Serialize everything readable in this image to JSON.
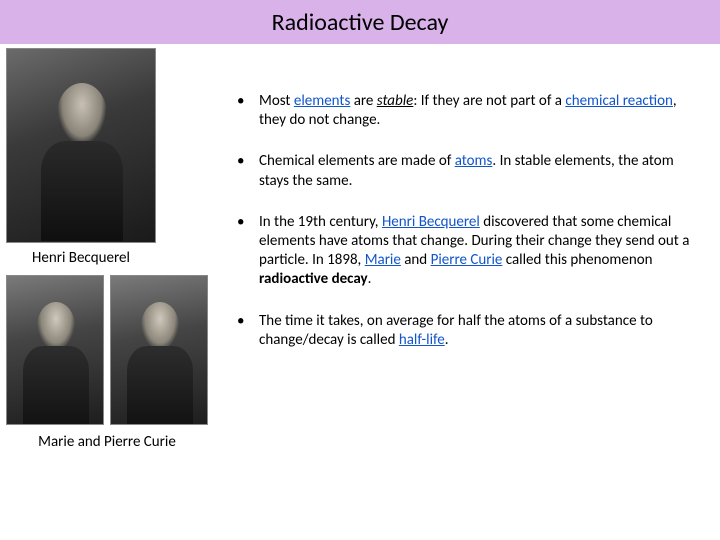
{
  "title": "Radioactive Decay",
  "captions": {
    "top": "Henri Becquerel",
    "bottom": "Marie and Pierre Curie"
  },
  "bullets": [
    {
      "pre": "Most ",
      "link1": "elements",
      "mid1": " are ",
      "em": "stable",
      "mid2": ": If they are not part of a ",
      "link2": "chemical reaction",
      "post": ", they do not change."
    },
    {
      "pre": "Chemical elements are made of ",
      "link1": "atoms",
      "post": ". In stable elements, the atom stays the same."
    },
    {
      "pre": "In the 19th century, ",
      "link1": "Henri Becquerel",
      "mid1": " discovered that some chemical elements have atoms that change. During their change they send out a particle. In 1898, ",
      "link2": "Marie",
      "mid2": " and ",
      "link3": "Pierre Curie",
      "mid3": " called this phenomenon ",
      "strong": "radioactive decay",
      "post": "."
    },
    {
      "pre": "The time it takes, on average for half the atoms of a substance to change/decay is called ",
      "link1": "half-life",
      "post": "."
    }
  ],
  "colors": {
    "title_bg": "#d8b2e8",
    "link": "#1155cc",
    "text": "#000000",
    "page_bg": "#ffffff"
  }
}
